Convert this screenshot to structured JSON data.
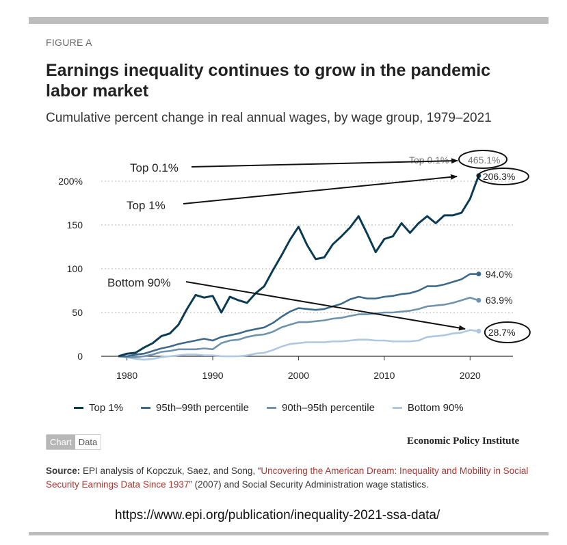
{
  "figure_label": "FIGURE A",
  "title": "Earnings inequality continues to grow in the pandemic labor market",
  "subtitle": "Cumulative percent change in real annual wages, by wage group, 1979–2021",
  "chart_data": {
    "type": "line",
    "ylim": [
      0,
      215
    ],
    "xlim": [
      1977,
      2025
    ],
    "y_ticks": [
      {
        "value": 0,
        "label": "0"
      },
      {
        "value": 50,
        "label": "50"
      },
      {
        "value": 100,
        "label": "100"
      },
      {
        "value": 150,
        "label": "150"
      },
      {
        "value": 200,
        "label": "200%"
      }
    ],
    "x_ticks": [
      {
        "value": 1980,
        "label": "1980"
      },
      {
        "value": 1990,
        "label": "1990"
      },
      {
        "value": 2000,
        "label": "2000"
      },
      {
        "value": 2010,
        "label": "2010"
      },
      {
        "value": 2020,
        "label": "2020"
      }
    ],
    "grid": true,
    "legend_position": "bottom",
    "series": [
      {
        "name": "Top 1%",
        "color": "#0b3a53",
        "end_label": "206.3%",
        "x": [
          1979,
          1980,
          1981,
          1982,
          1983,
          1984,
          1985,
          1986,
          1987,
          1988,
          1989,
          1990,
          1991,
          1992,
          1993,
          1994,
          1995,
          1996,
          1997,
          1998,
          1999,
          2000,
          2001,
          2002,
          2003,
          2004,
          2005,
          2006,
          2007,
          2008,
          2009,
          2010,
          2011,
          2012,
          2013,
          2014,
          2015,
          2016,
          2017,
          2018,
          2019,
          2020,
          2021
        ],
        "y": [
          0,
          3,
          4,
          10,
          15,
          23,
          26,
          36,
          54,
          70,
          67,
          69,
          50,
          68,
          64,
          61,
          72,
          80,
          98,
          115,
          133,
          148,
          127,
          111,
          113,
          128,
          137,
          147,
          160,
          140,
          119,
          134,
          137,
          152,
          141,
          152,
          160,
          152,
          161,
          161,
          164,
          180,
          206.3
        ]
      },
      {
        "name": "95th–99th percentile",
        "color": "#3d6a8a",
        "end_label": "94.0%",
        "x": [
          1979,
          1980,
          1981,
          1982,
          1983,
          1984,
          1985,
          1986,
          1987,
          1988,
          1989,
          1990,
          1991,
          1992,
          1993,
          1994,
          1995,
          1996,
          1997,
          1998,
          1999,
          2000,
          2001,
          2002,
          2003,
          2004,
          2005,
          2006,
          2007,
          2008,
          2009,
          2010,
          2011,
          2012,
          2013,
          2014,
          2015,
          2016,
          2017,
          2018,
          2019,
          2020,
          2021
        ],
        "y": [
          0,
          0,
          2,
          3,
          6,
          9,
          11,
          14,
          16,
          18,
          20,
          18,
          22,
          24,
          26,
          29,
          31,
          33,
          38,
          45,
          51,
          55,
          54,
          53,
          54,
          57,
          60,
          65,
          68,
          66,
          66,
          68,
          69,
          71,
          72,
          75,
          80,
          80,
          82,
          85,
          88,
          94,
          94.0
        ]
      },
      {
        "name": "90th–95th percentile",
        "color": "#6f93ad",
        "end_label": "63.9%",
        "x": [
          1979,
          1980,
          1981,
          1982,
          1983,
          1984,
          1985,
          1986,
          1987,
          1988,
          1989,
          1990,
          1991,
          1992,
          1993,
          1994,
          1995,
          1996,
          1997,
          1998,
          1999,
          2000,
          2001,
          2002,
          2003,
          2004,
          2005,
          2006,
          2007,
          2008,
          2009,
          2010,
          2011,
          2012,
          2013,
          2014,
          2015,
          2016,
          2017,
          2018,
          2019,
          2020,
          2021
        ],
        "y": [
          0,
          -1,
          -1,
          0,
          2,
          5,
          6,
          8,
          8,
          8,
          9,
          8,
          15,
          18,
          19,
          22,
          24,
          25,
          28,
          33,
          36,
          39,
          39,
          40,
          41,
          43,
          44,
          46,
          48,
          48,
          49,
          50,
          50,
          51,
          52,
          54,
          57,
          58,
          59,
          61,
          64,
          67,
          63.9
        ]
      },
      {
        "name": "Bottom 90%",
        "color": "#adc8e0",
        "end_label": "28.7%",
        "x": [
          1979,
          1980,
          1981,
          1982,
          1983,
          1984,
          1985,
          1986,
          1987,
          1988,
          1989,
          1990,
          1991,
          1992,
          1993,
          1994,
          1995,
          1996,
          1997,
          1998,
          1999,
          2000,
          2001,
          2002,
          2003,
          2004,
          2005,
          2006,
          2007,
          2008,
          2009,
          2010,
          2011,
          2012,
          2013,
          2014,
          2015,
          2016,
          2017,
          2018,
          2019,
          2020,
          2021
        ],
        "y": [
          0,
          -1,
          -3,
          -4,
          -3,
          -1,
          0,
          1,
          2,
          2,
          1,
          1,
          0,
          0,
          0,
          1,
          3,
          4,
          7,
          11,
          14,
          15,
          16,
          16,
          16,
          17,
          17,
          18,
          19,
          19,
          18,
          18,
          17,
          17,
          17,
          18,
          22,
          23,
          24,
          26,
          27,
          30,
          28.7
        ]
      }
    ],
    "annotations": {
      "top01_point_label": "Top 0.1%",
      "top01_value": "465.1%",
      "pointers": [
        {
          "label": "Top 0.1%",
          "target": "465.1%"
        },
        {
          "label": "Top 1%",
          "target": "206.3%"
        },
        {
          "label": "Bottom 90%",
          "target": "28.7%"
        }
      ]
    }
  },
  "tabs": {
    "chart": "Chart",
    "data": "Data"
  },
  "brand": "Economic Policy Institute",
  "source": {
    "label": "Source:",
    "text_before": " EPI analysis of Kopczuk, Saez, and Song, “",
    "link_text": "Uncovering the American Dream: Inequality and Mobility in Social Security Earnings Data Since 1937",
    "text_after": "” (2007) and Social Security Administration wage statistics."
  },
  "url": "https://www.epi.org/publication/inequality-2021-ssa-data/"
}
